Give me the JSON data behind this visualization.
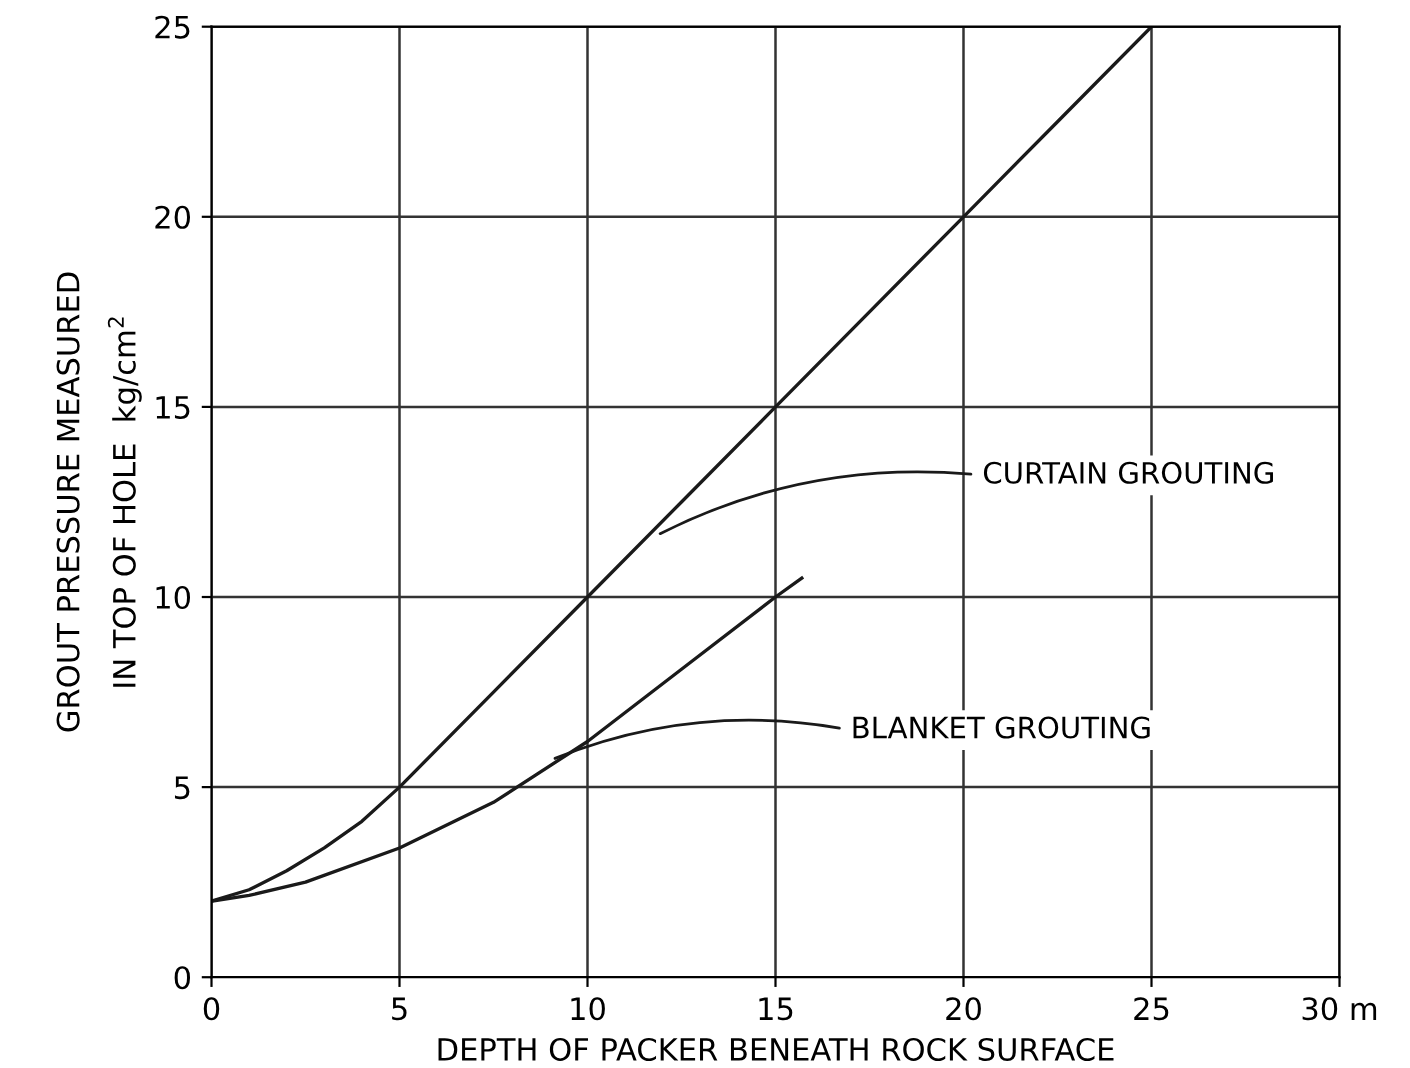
{
  "chart_data": {
    "type": "line",
    "xlabel": "DEPTH OF PACKER BENEATH ROCK SURFACE",
    "ylabel": "GROUT PRESSURE MEASURED\nIN TOP OF HOLE  kg/cm$^{2}$",
    "series": [
      {
        "color": "#1a1a1a",
        "x": [
          0,
          1,
          2,
          3,
          4,
          5,
          7.5,
          10,
          12.5,
          15,
          17.5,
          20,
          22.5,
          25
        ],
        "values": [
          2,
          2.3,
          2.8,
          3.4,
          4.1,
          5,
          7.5,
          10,
          12.5,
          15,
          17.5,
          20,
          22.5,
          25
        ]
      },
      {
        "color": "#1a1a1a",
        "x": [
          0,
          1,
          2.5,
          5,
          7.5,
          10,
          12.5,
          15,
          15.7
        ],
        "values": [
          2,
          2.15,
          2.5,
          3.4,
          4.6,
          6.2,
          8.1,
          10,
          10.5
        ]
      }
    ],
    "annotations": [
      {
        "text": "CURTAIN GROUTING",
        "x": 11.8,
        "y": 11.6
      },
      {
        "text": "BLANKET GROUTING",
        "x": 9,
        "y": 5.7
      }
    ],
    "xlim": [
      0,
      30
    ],
    "ylim": [
      0,
      25
    ],
    "xticks": [
      0,
      5,
      10,
      15,
      20,
      25,
      {
        "value": 30,
        "label": "30 m"
      }
    ],
    "yticks": [
      0,
      5,
      10,
      15,
      20,
      25
    ],
    "grid": true,
    "legend": false,
    "marker": "none",
    "line_style": "solid"
  }
}
